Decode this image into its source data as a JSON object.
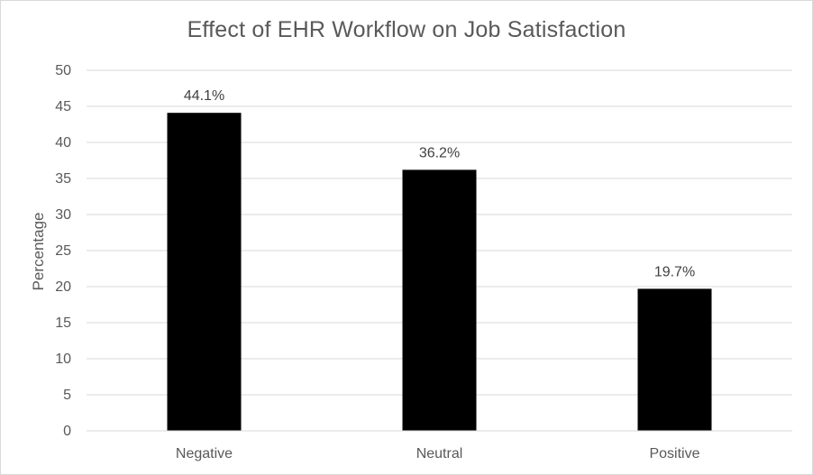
{
  "chart_data": {
    "type": "bar",
    "title": "Effect of EHR Workflow on Job Satisfaction",
    "xlabel": "",
    "ylabel": "Percentage",
    "categories": [
      "Negative",
      "Neutral",
      "Positive"
    ],
    "values": [
      44.1,
      36.2,
      19.7
    ],
    "data_labels": [
      "44.1%",
      "36.2%",
      "19.7%"
    ],
    "ylim": [
      0,
      50
    ],
    "yticks": [
      0,
      5,
      10,
      15,
      20,
      25,
      30,
      35,
      40,
      45,
      50
    ],
    "grid": true,
    "legend": "none",
    "colors": {
      "bar": "#000000",
      "grid": "#d9d9d9",
      "text": "#595959"
    }
  }
}
